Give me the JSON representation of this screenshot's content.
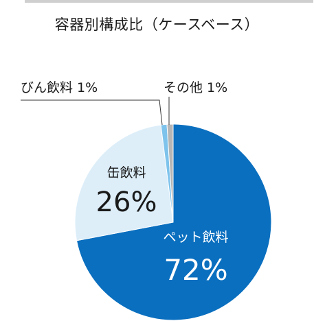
{
  "chart_data": {
    "type": "pie",
    "title": "容器別構成比（ケースベース）",
    "categories": [
      "ペット飲料",
      "缶飲料",
      "びん飲料",
      "その他"
    ],
    "values": [
      72,
      26,
      1,
      1
    ],
    "value_labels": [
      "72%",
      "26%",
      "1%",
      "1%"
    ],
    "colors": [
      "#0a6fbf",
      "#ddeef9",
      "#7ec3ec",
      "#b5b5b5"
    ],
    "start": "12 o'clock",
    "direction": "clockwise",
    "legend": "none"
  },
  "labels": {
    "pet": {
      "name": "ペット飲料",
      "pct": "72%"
    },
    "can": {
      "name": "缶飲料",
      "pct": "26%"
    },
    "bottle": "びん飲料 1%",
    "other": "その他 1%"
  }
}
